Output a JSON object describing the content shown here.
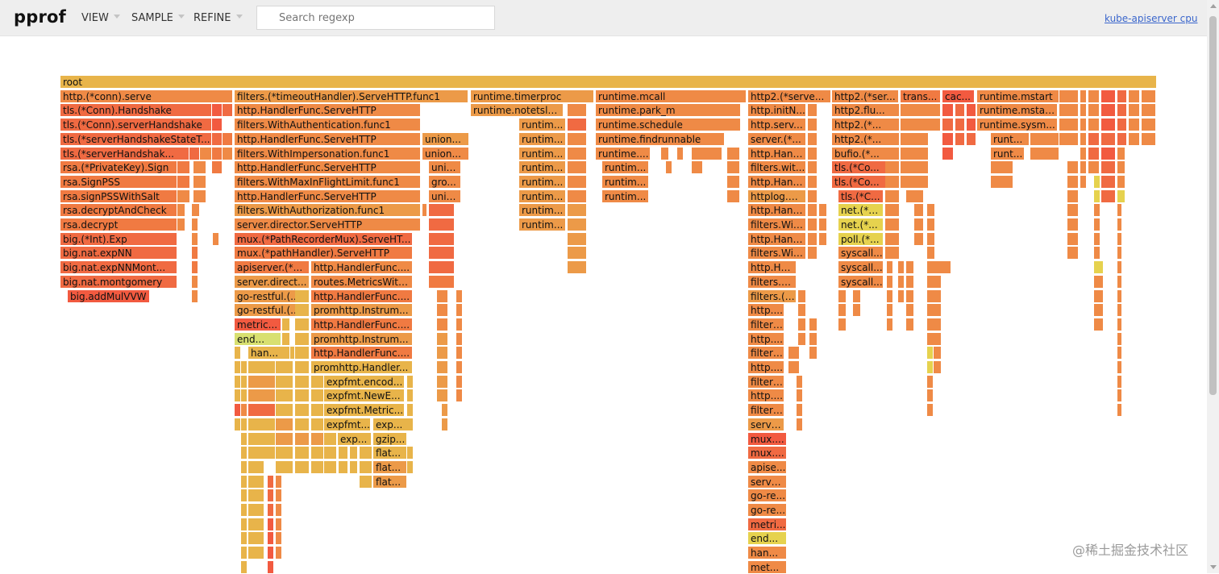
{
  "app": {
    "title": "pprof",
    "profile_name": "kube-apiserver cpu"
  },
  "menus": [
    {
      "label": "VIEW"
    },
    {
      "label": "SAMPLE"
    },
    {
      "label": "REFINE"
    }
  ],
  "search": {
    "placeholder": "Search regexp",
    "value": ""
  },
  "watermark": "@稀土掘金技术社区",
  "colors": {
    "c1": "#e8b44a",
    "c2": "#ec9a48",
    "c3": "#ef8a46",
    "c4": "#f07a42",
    "c5": "#f06a42",
    "c6": "#f25a40",
    "c7": "#e6d24e",
    "c8": "#d8e070"
  },
  "flame": {
    "labeled": [
      "root",
      "http.(*conn).serve",
      "filters.(*timeoutHandler).ServeHTTP.func1",
      "runtime.timerproc",
      "runtime.mcall",
      "http2.(*serve...",
      "http2.(*ser...",
      "trans...",
      "cac...",
      "runtime.mstart",
      "tls.(*Conn).Handshake",
      "http.HandlerFunc.ServeHTTP",
      "runtime.notetsle...",
      "runtime.park_m",
      "http.initN...",
      "http2.flu...",
      "runtime.mstar...",
      "tls.(*Conn).serverHandshake",
      "filters.WithAuthentication.func1",
      "runtim...",
      "runtime.schedule",
      "http.serv...",
      "http2.(*...",
      "runtime.sysm...",
      "tls.(*serverHandshakeStateT...",
      "http.HandlerFunc.ServeHTTP",
      "union...",
      "runtim...",
      "runtime.findrunnable",
      "server.(*...",
      "http2.(*...",
      "runt...",
      "tls.(*serverHandshak...",
      "filters.WithImpersonation.func1",
      "union...",
      "runtim...",
      "runtime....",
      "http.Hand...",
      "bufio.(*...",
      "runt...",
      "rsa.(*PrivateKey).Sign",
      "http.HandlerFunc.ServeHTTP",
      "unio...",
      "runtim...",
      "runtim...",
      "filters.wit...",
      "tls.(*Co...",
      "rsa.SignPSS",
      "filters.WithMaxInFlightLimit.func1",
      "gro...",
      "runtim...",
      "runtim...",
      "http.Hand...",
      "tls.(*Co...",
      "rsa.signPSSWithSalt",
      "http.HandlerFunc.ServeHTTP",
      "unio...",
      "runtim...",
      "runtim...",
      "httplog.W...",
      "tls.(*C...",
      "rsa.decryptAndCheck",
      "filters.WithAuthorization.func1",
      "runtim...",
      "http.Hand...",
      "net.(*c...",
      "rsa.decrypt",
      "server.director.ServeHTTP",
      "runtim...",
      "filters.Wit...",
      "net.(*...",
      "big.(*Int).Exp",
      "mux.(*PathRecorderMux).ServeHT...",
      "http.Hand...",
      "poll.(*...",
      "big.nat.expNN",
      "mux.(*pathHandler).ServeHTTP",
      "filters.Wit...",
      "syscall...",
      "big.nat.expNNMont...",
      "apiserver.(*...",
      "http.HandlerFunc....",
      "http.Ha...",
      "syscall...",
      "big.nat.montgomery",
      "server.direct...",
      "routes.MetricsWith...",
      "filters.W...",
      "syscall...",
      "big.addMulVVW",
      "go-restful.(...",
      "http.HandlerFunc....",
      "filters.(*...",
      "go-restful.(...",
      "promhttp.Instrum...",
      "http....",
      "metric...",
      "http.HandlerFunc....",
      "filters...",
      "end...",
      "promhttp.Instrum...",
      "http....",
      "han...",
      "http.HandlerFunc....",
      "filters...",
      "promhttp.Handler...",
      "http....",
      "expfmt.encod...",
      "filters...",
      "expfmt.NewE...",
      "http....",
      "expfmt.Metric...",
      "filters...",
      "expfmt...",
      "exp...",
      "serve...",
      "exp...",
      "gzip...",
      "mux....",
      "flat...",
      "mux....",
      "flat...",
      "apise...",
      "flat...",
      "serve...",
      "go-re...",
      "go-re...",
      "metri...",
      "end...",
      "han...",
      "met..."
    ]
  }
}
